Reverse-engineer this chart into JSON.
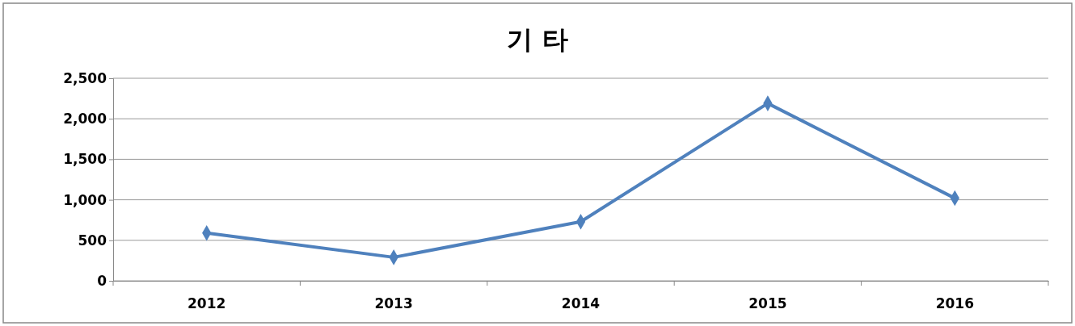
{
  "chart_data": {
    "type": "line",
    "title": "기 타",
    "categories": [
      "2012",
      "2013",
      "2014",
      "2015",
      "2016"
    ],
    "series": [
      {
        "color": "#4f81bd",
        "values": [
          590,
          290,
          730,
          2190,
          1020
        ]
      }
    ],
    "ylim": [
      0,
      2500
    ],
    "yticks": [
      {
        "value": 0,
        "label": "0"
      },
      {
        "value": 500,
        "label": "500"
      },
      {
        "value": 1000,
        "label": "1,000"
      },
      {
        "value": 1500,
        "label": "1,500"
      },
      {
        "value": 2000,
        "label": "2,000"
      },
      {
        "value": 2500,
        "label": "2,500"
      }
    ],
    "grid": "y",
    "marker": "diamond",
    "line_style": "solid"
  }
}
